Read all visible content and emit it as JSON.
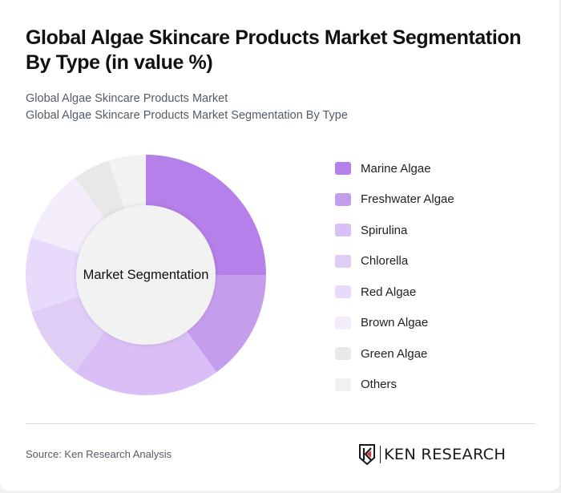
{
  "header": {
    "title": "Global Algae Skincare Products Market Segmentation By Type (in value %)",
    "subtitle_line1": "Global Algae Skincare Products Market",
    "subtitle_line2": "Global Algae Skincare Products Market Segmentation By Type"
  },
  "chart": {
    "center_label": "Market Segmentation"
  },
  "legend": [
    {
      "label": "Marine Algae",
      "color": "#b580ea"
    },
    {
      "label": "Freshwater Algae",
      "color": "#c59ded"
    },
    {
      "label": "Spirulina",
      "color": "#d9bff5"
    },
    {
      "label": "Chlorella",
      "color": "#e0cdf6"
    },
    {
      "label": "Red Algae",
      "color": "#e8dafa"
    },
    {
      "label": "Brown Algae",
      "color": "#f2ecfb"
    },
    {
      "label": "Green Algae",
      "color": "#e8e8e8"
    },
    {
      "label": "Others",
      "color": "#f2f2f2"
    }
  ],
  "footer": {
    "source": "Source: Ken Research Analysis",
    "logo_text": "KEN RESEARCH"
  },
  "chart_data": {
    "type": "pie",
    "title": "Global Algae Skincare Products Market Segmentation By Type (in value %)",
    "subtitle": "Global Algae Skincare Products Market Segmentation By Type",
    "center_label": "Market Segmentation",
    "donut": true,
    "categories": [
      "Marine Algae",
      "Freshwater Algae",
      "Spirulina",
      "Chlorella",
      "Red Algae",
      "Brown Algae",
      "Green Algae",
      "Others"
    ],
    "values": [
      25,
      15,
      20,
      10,
      10,
      10,
      5,
      5
    ],
    "unit": "%",
    "colors": [
      "#b580ea",
      "#c59ded",
      "#d9bff5",
      "#e0cdf6",
      "#e8dafa",
      "#f2ecfb",
      "#e8e8e8",
      "#f2f2f2"
    ],
    "legend_position": "right",
    "start_angle": 0,
    "direction": "clockwise"
  }
}
